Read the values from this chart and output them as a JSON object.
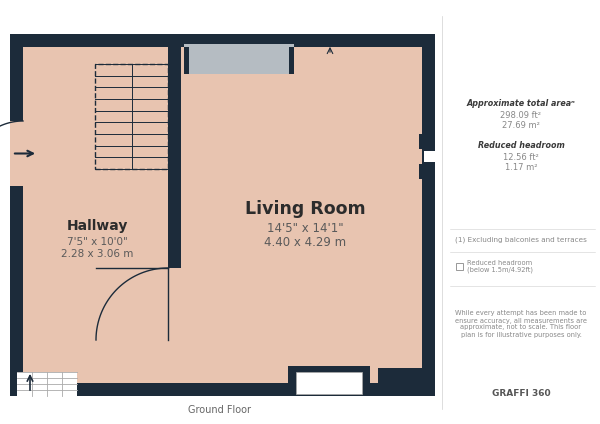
{
  "bg_color": "#ffffff",
  "wall_color": "#1c2b3a",
  "room_fill": "#e8c4b0",
  "gray_fill": "#b5bcc2",
  "white_fill": "#ffffff",
  "light_gray": "#e0e0e0",
  "fig_width": 6.0,
  "fig_height": 4.24,
  "floor_label": "Ground Floor",
  "hallway_label": "Hallway",
  "hallway_dim1": "7'5\" x 10'0\"",
  "hallway_dim2": "2.28 x 3.06 m",
  "living_label": "Living Room",
  "living_dim1": "14'5\" x 14'1\"",
  "living_dim2": "4.40 x 4.29 m",
  "approx_area_title": "Approximate total area",
  "approx_area_ft": "298.09 ft²",
  "approx_area_m": "27.69 m²",
  "reduced_hroom_title": "Reduced headroom",
  "reduced_hroom_ft": "12.56 ft²",
  "reduced_hroom_m": "1.17 m²",
  "footnote1": "(1) Excluding balconies and terraces",
  "footnote2": "Reduced headroom\n(below 1.5m/4.92ft)",
  "disclaimer": "While every attempt has been made to\nensure accuracy, all measurements are\napproximate, not to scale. This floor\nplan is for illustrative purposes only.",
  "brand": "GRAFFI 360"
}
